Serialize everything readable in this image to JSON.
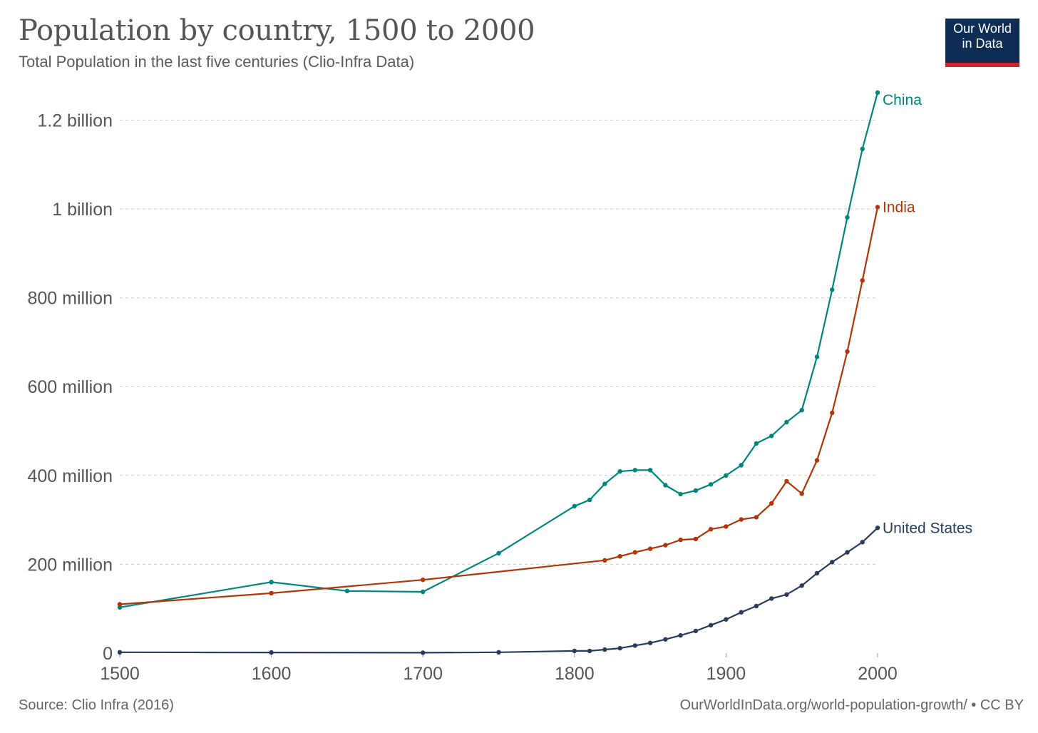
{
  "header": {
    "title": "Population by country, 1500 to 2000",
    "subtitle": "Total Population in the last five centuries (Clio-Infra Data)"
  },
  "logo": {
    "line1": "Our World",
    "line2": "in Data"
  },
  "footer": {
    "source": "Source: Clio Infra (2016)",
    "license": "OurWorldInData.org/world-population-growth/ • CC BY"
  },
  "chart_data": {
    "type": "line",
    "title": "Population by country, 1500 to 2000",
    "subtitle": "Total Population in the last five centuries (Clio-Infra Data)",
    "xlim": [
      1500,
      2000
    ],
    "ylim": [
      0,
      1260000000
    ],
    "grid": true,
    "legend": "end-of-line labels",
    "x_ticks": [
      {
        "value": 1500,
        "label": "1500"
      },
      {
        "value": 1600,
        "label": "1600"
      },
      {
        "value": 1700,
        "label": "1700"
      },
      {
        "value": 1800,
        "label": "1800"
      },
      {
        "value": 1900,
        "label": "1900"
      },
      {
        "value": 2000,
        "label": "2000"
      }
    ],
    "y_ticks": [
      {
        "value": 0,
        "label": "0"
      },
      {
        "value": 200000000,
        "label": "200 million"
      },
      {
        "value": 400000000,
        "label": "400 million"
      },
      {
        "value": 600000000,
        "label": "600 million"
      },
      {
        "value": 800000000,
        "label": "800 million"
      },
      {
        "value": 1000000000,
        "label": "1 billion"
      },
      {
        "value": 1200000000,
        "label": "1.2 billion"
      }
    ],
    "series": [
      {
        "name": "China",
        "color": "#00847e",
        "points": [
          [
            1500,
            103000000
          ],
          [
            1600,
            160000000
          ],
          [
            1650,
            140000000
          ],
          [
            1700,
            138000000
          ],
          [
            1750,
            225000000
          ],
          [
            1800,
            331000000
          ],
          [
            1810,
            345000000
          ],
          [
            1820,
            381000000
          ],
          [
            1830,
            409000000
          ],
          [
            1840,
            412000000
          ],
          [
            1850,
            412000000
          ],
          [
            1860,
            378000000
          ],
          [
            1870,
            358000000
          ],
          [
            1880,
            366000000
          ],
          [
            1890,
            380000000
          ],
          [
            1900,
            400000000
          ],
          [
            1910,
            423000000
          ],
          [
            1920,
            472000000
          ],
          [
            1930,
            489000000
          ],
          [
            1940,
            520000000
          ],
          [
            1950,
            547000000
          ],
          [
            1960,
            667000000
          ],
          [
            1970,
            818000000
          ],
          [
            1980,
            981000000
          ],
          [
            1990,
            1135000000
          ],
          [
            2000,
            1262000000
          ]
        ]
      },
      {
        "name": "India",
        "color": "#b13507",
        "points": [
          [
            1500,
            110000000
          ],
          [
            1600,
            135000000
          ],
          [
            1700,
            165000000
          ],
          [
            1820,
            209000000
          ],
          [
            1830,
            218000000
          ],
          [
            1840,
            227000000
          ],
          [
            1850,
            235000000
          ],
          [
            1860,
            243000000
          ],
          [
            1870,
            255000000
          ],
          [
            1880,
            257000000
          ],
          [
            1890,
            279000000
          ],
          [
            1900,
            285000000
          ],
          [
            1910,
            301000000
          ],
          [
            1920,
            306000000
          ],
          [
            1930,
            337000000
          ],
          [
            1940,
            387000000
          ],
          [
            1950,
            359000000
          ],
          [
            1960,
            434000000
          ],
          [
            1970,
            541000000
          ],
          [
            1980,
            679000000
          ],
          [
            1990,
            839000000
          ],
          [
            2000,
            1004000000
          ]
        ]
      },
      {
        "name": "United States",
        "color": "#283d5c",
        "points": [
          [
            1500,
            2000000
          ],
          [
            1600,
            1500000
          ],
          [
            1700,
            1000000
          ],
          [
            1750,
            2000000
          ],
          [
            1800,
            5000000
          ],
          [
            1810,
            5000000
          ],
          [
            1820,
            8000000
          ],
          [
            1830,
            11000000
          ],
          [
            1840,
            17000000
          ],
          [
            1850,
            23000000
          ],
          [
            1860,
            31000000
          ],
          [
            1870,
            40000000
          ],
          [
            1880,
            50000000
          ],
          [
            1890,
            63000000
          ],
          [
            1900,
            76000000
          ],
          [
            1910,
            92000000
          ],
          [
            1920,
            106000000
          ],
          [
            1930,
            123000000
          ],
          [
            1940,
            132000000
          ],
          [
            1950,
            152000000
          ],
          [
            1960,
            180000000
          ],
          [
            1970,
            205000000
          ],
          [
            1980,
            227000000
          ],
          [
            1990,
            250000000
          ],
          [
            2000,
            282000000
          ]
        ]
      }
    ]
  }
}
